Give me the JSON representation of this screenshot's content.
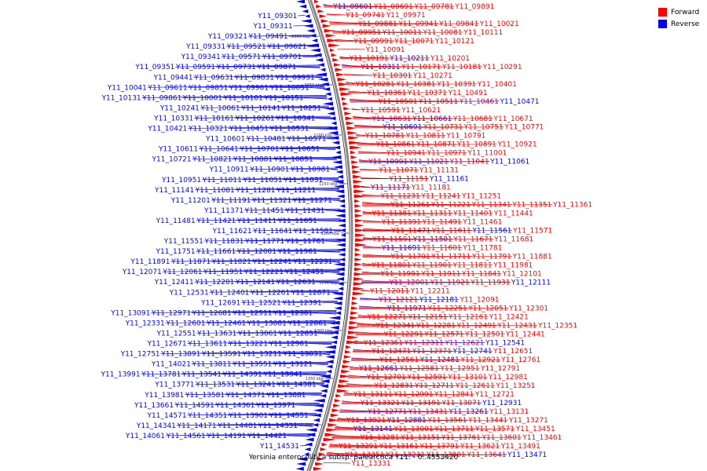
{
  "title": "Yersinia enterocolitica subsp. palearctica Y11. - 0..4553420",
  "legend": [
    {
      "label": "Forward",
      "color": "#ff0000"
    },
    {
      "label": "Reverse",
      "color": "#0000ff"
    }
  ],
  "colors": {
    "forward": "#ff0000",
    "reverse": "#0000ff",
    "backbone": "#888888"
  },
  "ticks": [
    "1000 kbp",
    "1050 kbp",
    "1100 kbp",
    "1150 kbp",
    "1200 kbp",
    "1250 kbp",
    "1300 kbp",
    "1350 kbp",
    "1400 kbp"
  ],
  "left_labels": [
    "Y11_09301",
    "Y11_09311",
    "Y11_09321",
    "Y11_09491",
    "Y11_09331",
    "Y11_09521",
    "Y11_09621",
    "Y11_09341",
    "Y11_09571",
    "Y11_09701",
    "Y11_09351",
    "Y11_09591",
    "Y11_09731",
    "Y11_09871",
    "Y11_09441",
    "Y11_09631",
    "Y11_09831",
    "Y11_09931",
    "Y11_10041",
    "Y11_09611",
    "Y11_09851",
    "Y11_09961",
    "Y11_10051",
    "Y11_10131",
    "Y11_09861",
    "Y11_10001",
    "Y11_10101",
    "Y11_10151",
    "Y11_10241",
    "Y11_10061",
    "Y11_10141",
    "Y11_10251",
    "Y11_10331",
    "Y11_10161",
    "Y11_10261",
    "Y11_10341",
    "Y11_10421",
    "Y11_10321",
    "Y11_10451",
    "Y11_10531",
    "Y11_10601",
    "Y11_10481",
    "Y11_10571",
    "Y11_10611",
    "Y11_10641",
    "Y11_10701",
    "Y11_10651",
    "Y11_10721",
    "Y11_10821",
    "Y11_10881",
    "Y11_10851",
    "Y11_10911",
    "Y11_10901",
    "Y11_10981",
    "Y11_10951",
    "Y11_11011",
    "Y11_11051",
    "Y11_11031",
    "Y11_11141",
    "Y11_11081",
    "Y11_11281",
    "Y11_11211",
    "Y11_11201",
    "Y11_11191",
    "Y11_11321",
    "Y11_11271",
    "Y11_11371",
    "Y11_11451",
    "Y11_11431",
    "Y11_11481",
    "Y11_11421",
    "Y11_11411",
    "Y11_11651",
    "Y11_11621",
    "Y11_11641",
    "Y11_11581",
    "Y11_11551",
    "Y11_11831",
    "Y11_11771",
    "Y11_11761",
    "Y11_11751",
    "Y11_11661",
    "Y11_12081",
    "Y11_11961",
    "Y11_11891",
    "Y11_11871",
    "Y11_11821",
    "Y11_12241",
    "Y11_12231",
    "Y11_12071",
    "Y11_12061",
    "Y11_11951",
    "Y11_12221",
    "Y11_12451",
    "Y11_12411",
    "Y11_12201",
    "Y11_12141",
    "Y11_12631",
    "Y11_12531",
    "Y11_12401",
    "Y11_12261",
    "Y11_12871",
    "Y11_12691",
    "Y11_12521",
    "Y11_12391",
    "Y11_13091",
    "Y11_12971",
    "Y11_12681",
    "Y11_12511",
    "Y11_12381",
    "Y11_12331",
    "Y11_12601",
    "Y11_12461",
    "Y11_13081",
    "Y11_12861",
    "Y11_12551",
    "Y11_13631",
    "Y11_13061",
    "Y11_12851",
    "Y11_12671",
    "Y11_13611",
    "Y11_13221",
    "Y11_12961",
    "Y11_12751",
    "Y11_13891",
    "Y11_13591",
    "Y11_13211",
    "Y11_13031",
    "Y11_14021",
    "Y11_13811",
    "Y11_13551",
    "Y11_13121",
    "Y11_13991",
    "Y11_13781",
    "Y11_13541",
    "Y11_14391",
    "Y11_13941",
    "Y11_13771",
    "Y11_13531",
    "Y11_13241",
    "Y11_14381",
    "Y11_13981",
    "Y11_13581",
    "Y11_14371",
    "Y11_13881",
    "Y11_13661",
    "Y11_14591",
    "Y11_14361",
    "Y11_13971",
    "Y11_14571",
    "Y11_14351",
    "Y11_13901",
    "Y11_14551",
    "Y11_14341",
    "Y11_14171",
    "Y11_14481",
    "Y11_14331",
    "Y11_14061",
    "Y11_14561",
    "Y11_14191",
    "Y11_14421",
    "Y11_14531"
  ],
  "right_labels": [
    "Y11_09601",
    "Y11_09691",
    "Y11_09781",
    "Y11_09891",
    "Y11_09741",
    "Y11_09971",
    "Y11_09881",
    "Y11_09941",
    "Y11_09841",
    "Y11_10021",
    "Y11_09951",
    "Y11_10011",
    "Y11_10081",
    "Y11_10111",
    "Y11_09991",
    "Y11_10071",
    "Y11_10121",
    "Y11_10091",
    "Y11_10191",
    "Y11_10211",
    "Y11_10201",
    "Y11_10311",
    "Y11_10171",
    "Y11_10181",
    "Y11_10291",
    "Y11_10301",
    "Y11_10271",
    "Y11_10281",
    "Y11_10381",
    "Y11_10391",
    "Y11_10401",
    "Y11_10361",
    "Y11_10371",
    "Y11_10491",
    "Y11_10501",
    "Y11_10511",
    "Y11_10461",
    "Y11_10471",
    "Y11_10591",
    "Y11_10621",
    "Y11_10631",
    "Y11_10661",
    "Y11_10681",
    "Y11_10671",
    "Y11_10691",
    "Y11_10731",
    "Y11_10751",
    "Y11_10771",
    "Y11_10781",
    "Y11_10811",
    "Y11_10791",
    "Y11_10861",
    "Y11_10871",
    "Y11_10891",
    "Y11_10921",
    "Y11_10941",
    "Y11_10971",
    "Y11_11001",
    "Y11_10991",
    "Y11_11021",
    "Y11_11041",
    "Y11_11061",
    "Y11_11071",
    "Y11_11131",
    "Y11_11151",
    "Y11_11161",
    "Y11_11171",
    "Y11_11181",
    "Y11_11231",
    "Y11_11241",
    "Y11_11251",
    "Y11_11261",
    "Y11_11221",
    "Y11_11341",
    "Y11_11351",
    "Y11_11361",
    "Y11_11381",
    "Y11_11311",
    "Y11_11401",
    "Y11_11441",
    "Y11_11391",
    "Y11_11491",
    "Y11_11461",
    "Y11_11471",
    "Y11_11611",
    "Y11_11561",
    "Y11_11571",
    "Y11_11591",
    "Y11_11501",
    "Y11_11671",
    "Y11_11681",
    "Y11_11691",
    "Y11_11601",
    "Y11_11781",
    "Y11_11701",
    "Y11_11711",
    "Y11_11791",
    "Y11_11881",
    "Y11_11801",
    "Y11_11901",
    "Y11_11811",
    "Y11_11981",
    "Y11_11991",
    "Y11_11911",
    "Y11_11841",
    "Y11_12101",
    "Y11_12001",
    "Y11_11921",
    "Y11_11931",
    "Y11_12111",
    "Y11_12011",
    "Y11_12211",
    "Y11_12121",
    "Y11_12181",
    "Y11_12091",
    "Y11_11971",
    "Y11_12251",
    "Y11_12051",
    "Y11_12301",
    "Y11_12271",
    "Y11_12151",
    "Y11_12161",
    "Y11_12421",
    "Y11_12341",
    "Y11_12281",
    "Y11_12491",
    "Y11_12431",
    "Y11_12351",
    "Y11_12291",
    "Y11_12571",
    "Y11_12501",
    "Y11_12441",
    "Y11_12361",
    "Y11_12311",
    "Y11_12621",
    "Y11_12541",
    "Y11_12471",
    "Y11_12371",
    "Y11_12741",
    "Y11_12651",
    "Y11_12561",
    "Y11_12481",
    "Y11_12921",
    "Y11_12761",
    "Y11_12661",
    "Y11_12581",
    "Y11_12951",
    "Y11_12791",
    "Y11_12701",
    "Y11_12591",
    "Y11_13101",
    "Y11_12981",
    "Y11_12831",
    "Y11_12711",
    "Y11_12611",
    "Y11_13251",
    "Y11_13111",
    "Y11_12991",
    "Y11_12841",
    "Y11_12721",
    "Y11_13321",
    "Y11_13191",
    "Y11_13071",
    "Y11_12931",
    "Y11_12771",
    "Y11_13431",
    "Y11_13261",
    "Y11_13131",
    "Y11_13021",
    "Y11_12881",
    "Y11_13561",
    "Y11_13441",
    "Y11_13271",
    "Y11_13141",
    "Y11_13001",
    "Y11_13711",
    "Y11_13571",
    "Y11_13451",
    "Y11_13281",
    "Y11_13151",
    "Y11_13761",
    "Y11_13601",
    "Y11_13461",
    "Y11_13291",
    "Y11_13161",
    "Y11_13791",
    "Y11_13621",
    "Y11_13491",
    "Y11_13351",
    "Y11_13231",
    "Y11_13801",
    "Y11_13641",
    "Y11_13471",
    "Y11_13331"
  ]
}
